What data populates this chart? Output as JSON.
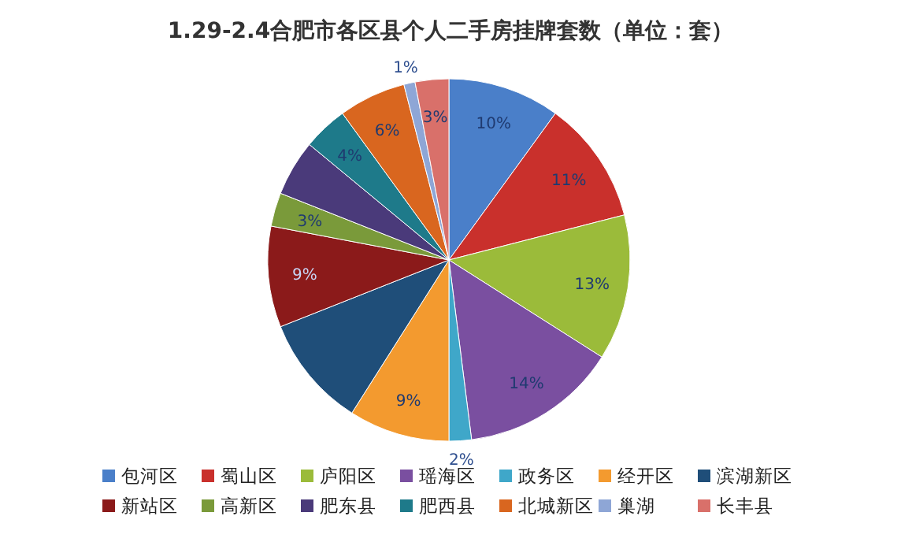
{
  "chart_data": {
    "type": "pie",
    "title": "1.29-2.4合肥市各区县个人二手房挂牌套数（单位：套）",
    "categories": [
      "包河区",
      "蜀山区",
      "庐阳区",
      "瑶海区",
      "政务区",
      "经开区",
      "滨湖新区",
      "新站区",
      "高新区",
      "肥东县",
      "肥西县",
      "北城新区",
      "巢湖",
      "长丰县"
    ],
    "values": [
      10,
      11,
      13,
      14,
      2,
      9,
      10,
      9,
      3,
      5,
      4,
      6,
      1,
      3
    ],
    "value_labels": [
      "10%",
      "11%",
      "13%",
      "14%",
      "2%",
      "9%",
      null,
      "9%",
      "3%",
      null,
      "4%",
      "6%",
      "1%",
      "3%"
    ],
    "colors": [
      "#4a7fc9",
      "#c9302c",
      "#9bbb3a",
      "#7a4fa0",
      "#3fa7c9",
      "#f39a2f",
      "#1f4e79",
      "#8b1a1a",
      "#7a9a3a",
      "#4a3a7a",
      "#1e7a8a",
      "#d9661f",
      "#8ea6d6",
      "#d9706a"
    ],
    "legend": "bottom"
  }
}
